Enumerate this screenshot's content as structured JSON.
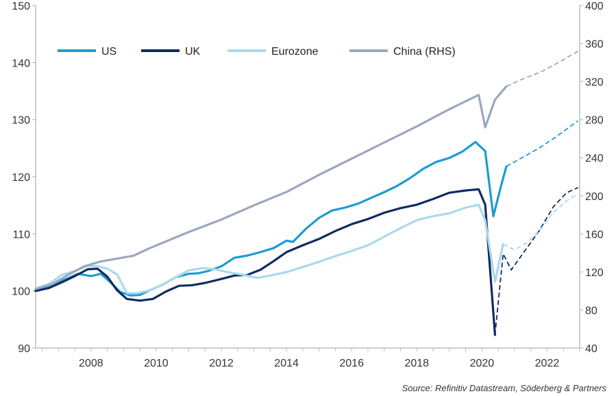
{
  "source": "Source: Refinitiv Datastream, Söderberg & Partners",
  "chart_data": {
    "type": "line",
    "xlim": [
      2006.3,
      2023.0
    ],
    "x_ticks": [
      2008,
      2010,
      2012,
      2014,
      2016,
      2018,
      2020,
      2022
    ],
    "ylim": [
      90,
      150
    ],
    "y_ticks": [
      90,
      100,
      110,
      120,
      130,
      140,
      150
    ],
    "y2lim": [
      40,
      400
    ],
    "y2_ticks": [
      40,
      80,
      120,
      160,
      200,
      240,
      280,
      320,
      360,
      400
    ],
    "grid": false,
    "legend_position": "top-left",
    "series": [
      {
        "name": "US",
        "axis": "left",
        "color": "#1F9BD1",
        "width": 3.2,
        "actual": [
          [
            2006.3,
            100.1
          ],
          [
            2006.8,
            101.1
          ],
          [
            2007.2,
            102.0
          ],
          [
            2007.6,
            103.0
          ],
          [
            2008.0,
            102.6
          ],
          [
            2008.3,
            103.0
          ],
          [
            2008.6,
            101.5
          ],
          [
            2008.9,
            99.8
          ],
          [
            2009.2,
            99.2
          ],
          [
            2009.5,
            99.3
          ],
          [
            2009.8,
            100.1
          ],
          [
            2010.2,
            101.1
          ],
          [
            2010.6,
            102.4
          ],
          [
            2011.0,
            103.0
          ],
          [
            2011.3,
            103.1
          ],
          [
            2011.6,
            103.5
          ],
          [
            2012.0,
            104.3
          ],
          [
            2012.4,
            105.8
          ],
          [
            2012.8,
            106.2
          ],
          [
            2013.2,
            106.8
          ],
          [
            2013.6,
            107.5
          ],
          [
            2014.0,
            108.8
          ],
          [
            2014.2,
            108.6
          ],
          [
            2014.6,
            110.9
          ],
          [
            2015.0,
            112.8
          ],
          [
            2015.4,
            114.1
          ],
          [
            2015.8,
            114.6
          ],
          [
            2016.2,
            115.3
          ],
          [
            2016.6,
            116.3
          ],
          [
            2017.0,
            117.3
          ],
          [
            2017.4,
            118.4
          ],
          [
            2017.8,
            119.8
          ],
          [
            2018.2,
            121.4
          ],
          [
            2018.6,
            122.6
          ],
          [
            2019.0,
            123.3
          ],
          [
            2019.4,
            124.4
          ],
          [
            2019.8,
            126.1
          ],
          [
            2020.1,
            124.5
          ],
          [
            2020.35,
            113.1
          ],
          [
            2020.6,
            118.7
          ],
          [
            2020.75,
            121.8
          ]
        ],
        "forecast": [
          [
            2020.75,
            121.8
          ],
          [
            2021.25,
            123.4
          ],
          [
            2021.75,
            125.0
          ],
          [
            2022.25,
            126.9
          ],
          [
            2022.95,
            129.8
          ]
        ]
      },
      {
        "name": "UK",
        "axis": "left",
        "color": "#0F2C5F",
        "width": 3.2,
        "actual": [
          [
            2006.3,
            100.0
          ],
          [
            2006.7,
            100.5
          ],
          [
            2007.1,
            101.5
          ],
          [
            2007.5,
            102.6
          ],
          [
            2007.9,
            103.8
          ],
          [
            2008.2,
            103.9
          ],
          [
            2008.5,
            102.5
          ],
          [
            2008.8,
            100.1
          ],
          [
            2009.1,
            98.6
          ],
          [
            2009.5,
            98.3
          ],
          [
            2009.9,
            98.6
          ],
          [
            2010.3,
            99.9
          ],
          [
            2010.7,
            100.9
          ],
          [
            2011.1,
            101.0
          ],
          [
            2011.5,
            101.4
          ],
          [
            2012.0,
            102.1
          ],
          [
            2012.4,
            102.7
          ],
          [
            2012.8,
            102.8
          ],
          [
            2013.2,
            103.7
          ],
          [
            2013.6,
            105.2
          ],
          [
            2014.0,
            106.8
          ],
          [
            2014.5,
            108.0
          ],
          [
            2015.0,
            109.1
          ],
          [
            2015.5,
            110.5
          ],
          [
            2016.0,
            111.7
          ],
          [
            2016.5,
            112.6
          ],
          [
            2017.0,
            113.7
          ],
          [
            2017.5,
            114.5
          ],
          [
            2018.0,
            115.1
          ],
          [
            2018.5,
            116.1
          ],
          [
            2019.0,
            117.2
          ],
          [
            2019.5,
            117.6
          ],
          [
            2019.9,
            117.8
          ],
          [
            2020.1,
            115.1
          ],
          [
            2020.4,
            92.3
          ]
        ],
        "forecast": [
          [
            2020.4,
            92.3
          ],
          [
            2020.65,
            106.5
          ],
          [
            2020.9,
            103.7
          ],
          [
            2021.25,
            106.5
          ],
          [
            2021.75,
            110.5
          ],
          [
            2022.2,
            114.8
          ],
          [
            2022.6,
            117.2
          ],
          [
            2022.95,
            118.1
          ]
        ]
      },
      {
        "name": "Eurozone",
        "axis": "left",
        "color": "#A9D9EE",
        "width": 3.2,
        "actual": [
          [
            2006.3,
            100.4
          ],
          [
            2006.7,
            101.2
          ],
          [
            2007.1,
            102.8
          ],
          [
            2007.5,
            103.5
          ],
          [
            2007.9,
            104.4
          ],
          [
            2008.2,
            104.3
          ],
          [
            2008.5,
            103.9
          ],
          [
            2008.8,
            102.9
          ],
          [
            2009.1,
            99.6
          ],
          [
            2009.4,
            99.6
          ],
          [
            2009.8,
            100.1
          ],
          [
            2010.2,
            101.1
          ],
          [
            2010.6,
            102.4
          ],
          [
            2011.0,
            103.6
          ],
          [
            2011.4,
            104.0
          ],
          [
            2011.8,
            103.8
          ],
          [
            2012.2,
            103.3
          ],
          [
            2012.6,
            102.9
          ],
          [
            2013.1,
            102.3
          ],
          [
            2013.5,
            102.7
          ],
          [
            2014.0,
            103.3
          ],
          [
            2014.5,
            104.2
          ],
          [
            2015.0,
            105.1
          ],
          [
            2015.5,
            106.1
          ],
          [
            2016.0,
            107.0
          ],
          [
            2016.5,
            108.0
          ],
          [
            2017.0,
            109.5
          ],
          [
            2017.5,
            111.0
          ],
          [
            2018.0,
            112.4
          ],
          [
            2018.5,
            113.1
          ],
          [
            2019.0,
            113.6
          ],
          [
            2019.5,
            114.6
          ],
          [
            2019.9,
            115.1
          ],
          [
            2020.1,
            112.4
          ],
          [
            2020.4,
            101.6
          ],
          [
            2020.65,
            108.2
          ]
        ],
        "forecast": [
          [
            2020.65,
            108.2
          ],
          [
            2021.0,
            107.2
          ],
          [
            2021.4,
            108.5
          ],
          [
            2021.8,
            110.8
          ],
          [
            2022.2,
            113.8
          ],
          [
            2022.6,
            115.8
          ],
          [
            2022.95,
            117.0
          ]
        ]
      },
      {
        "name": "China (RHS)",
        "axis": "right",
        "color": "#9BA7BE",
        "width": 3.2,
        "actual": [
          [
            2006.3,
            102
          ],
          [
            2006.8,
            107
          ],
          [
            2007.3,
            117
          ],
          [
            2007.8,
            126
          ],
          [
            2008.3,
            131
          ],
          [
            2008.8,
            134
          ],
          [
            2009.3,
            137
          ],
          [
            2009.8,
            145
          ],
          [
            2010.3,
            152
          ],
          [
            2011.0,
            162
          ],
          [
            2012.0,
            175
          ],
          [
            2013.0,
            190
          ],
          [
            2014.0,
            204
          ],
          [
            2015.0,
            222
          ],
          [
            2016.0,
            239
          ],
          [
            2017.0,
            256
          ],
          [
            2018.0,
            273
          ],
          [
            2019.0,
            291
          ],
          [
            2019.9,
            306
          ],
          [
            2020.1,
            272
          ],
          [
            2020.4,
            301
          ],
          [
            2020.75,
            315
          ]
        ],
        "forecast": [
          [
            2020.75,
            315
          ],
          [
            2021.2,
            322
          ],
          [
            2021.8,
            330
          ],
          [
            2022.4,
            341
          ],
          [
            2022.95,
            352
          ]
        ]
      }
    ]
  }
}
